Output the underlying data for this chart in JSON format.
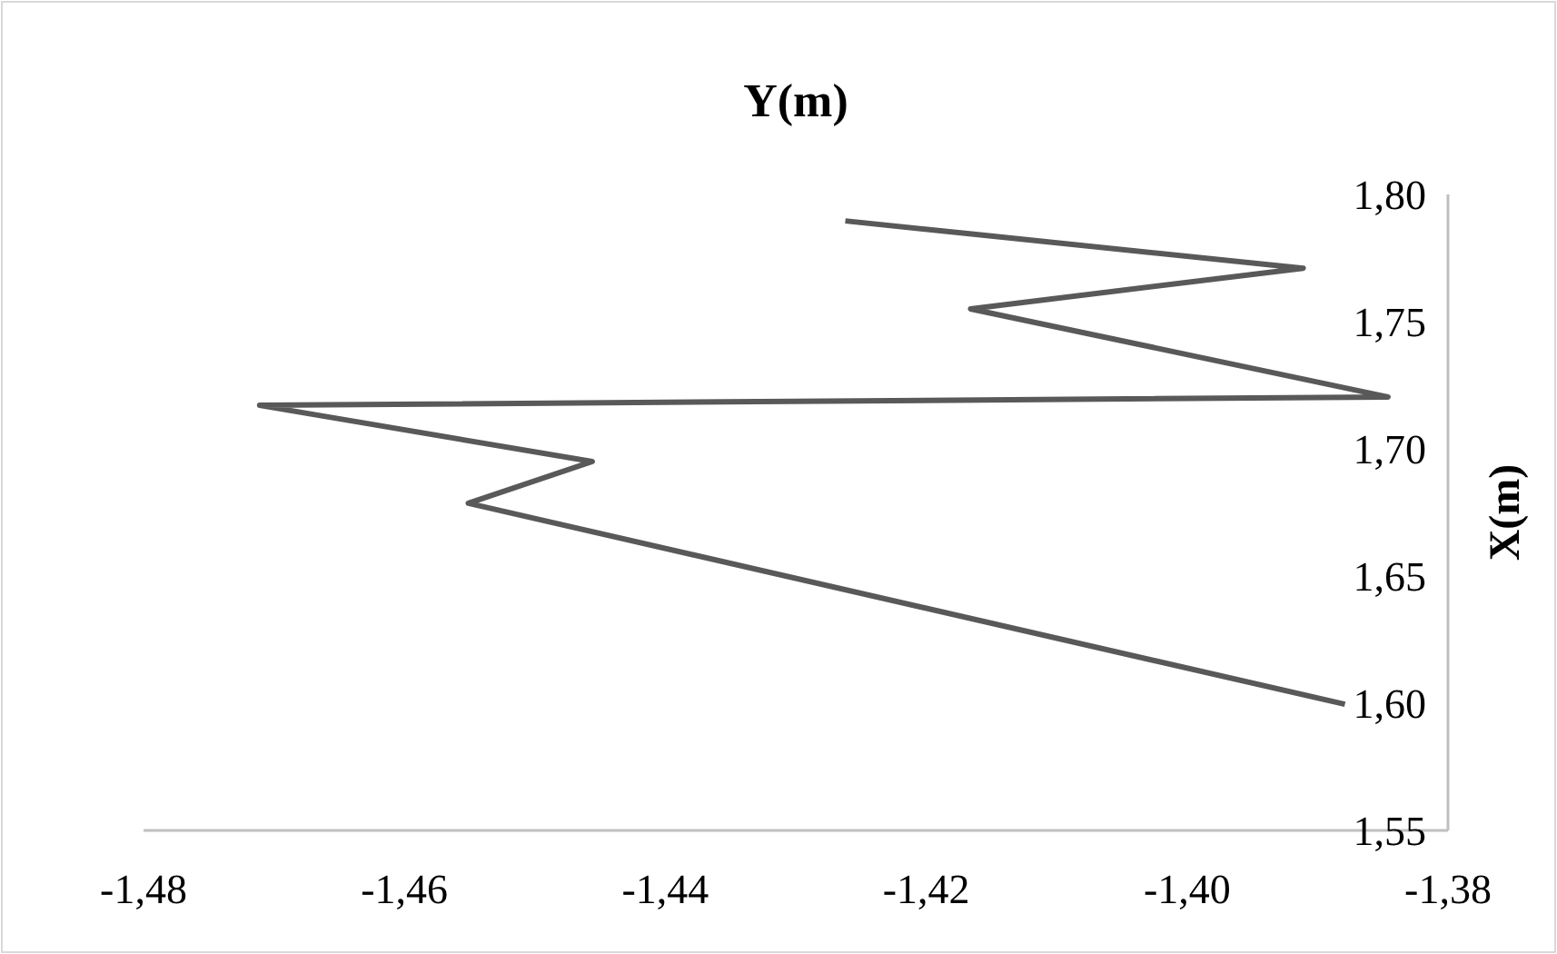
{
  "chart_data": {
    "type": "line",
    "title": "Y(m)",
    "ylabel": "X(m)",
    "x": [
      -1.4262,
      -1.3911,
      -1.4166,
      -1.3846,
      -1.4711,
      -1.4456,
      -1.4551,
      -1.3879
    ],
    "series": [
      {
        "color": "#595959",
        "values": [
          1.7896,
          1.771,
          1.755,
          1.7204,
          1.7171,
          1.695,
          1.6786,
          1.5996
        ]
      }
    ],
    "xlim": [
      -1.48,
      -1.38
    ],
    "ylim": [
      1.55,
      1.8
    ],
    "xticks": [
      {
        "value": -1.48,
        "label": "-1,48"
      },
      {
        "value": -1.46,
        "label": "-1,46"
      },
      {
        "value": -1.44,
        "label": "-1,44"
      },
      {
        "value": -1.42,
        "label": "-1,42"
      },
      {
        "value": -1.4,
        "label": "-1,40"
      },
      {
        "value": -1.38,
        "label": "-1,38"
      }
    ],
    "yticks": [
      {
        "value": 1.55,
        "label": "1,55"
      },
      {
        "value": 1.6,
        "label": "1,60"
      },
      {
        "value": 1.65,
        "label": "1,65"
      },
      {
        "value": 1.7,
        "label": "1,70"
      },
      {
        "value": 1.75,
        "label": "1,75"
      },
      {
        "value": 1.8,
        "label": "1,80"
      }
    ],
    "grid": false,
    "marker": "none",
    "line_style": "solid"
  }
}
